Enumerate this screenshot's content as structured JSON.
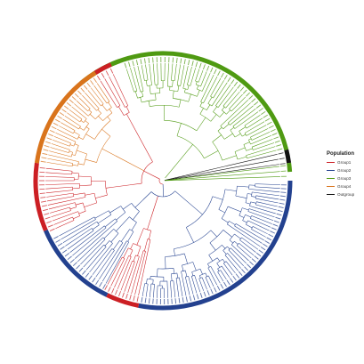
{
  "legend": {
    "title": "Population",
    "items": [
      {
        "key": "group1",
        "label": "Group1",
        "color": "#cc1f24"
      },
      {
        "key": "group2",
        "label": "Group2",
        "color": "#23418f"
      },
      {
        "key": "group3",
        "label": "Group3",
        "color": "#4f9a12"
      },
      {
        "key": "group4",
        "label": "Group4",
        "color": "#d9741c"
      },
      {
        "key": "outgroup",
        "label": "Outgroup",
        "color": "#111111"
      }
    ]
  },
  "tree": {
    "layout": "circular",
    "outer_ring": [
      {
        "group": "group3",
        "color": "#4f9a12"
      },
      {
        "group": "outgroup",
        "color": "#111111"
      },
      {
        "group": "group3",
        "color": "#4f9a12"
      },
      {
        "group": "group2",
        "color": "#23418f"
      },
      {
        "group": "group1",
        "color": "#cc1f24"
      },
      {
        "group": "group2",
        "color": "#23418f"
      },
      {
        "group": "group1",
        "color": "#cc1f24"
      },
      {
        "group": "group4",
        "color": "#d9741c"
      },
      {
        "group": "group1",
        "color": "#cc1f24"
      },
      {
        "group": "group3",
        "color": "#4f9a12"
      }
    ]
  }
}
